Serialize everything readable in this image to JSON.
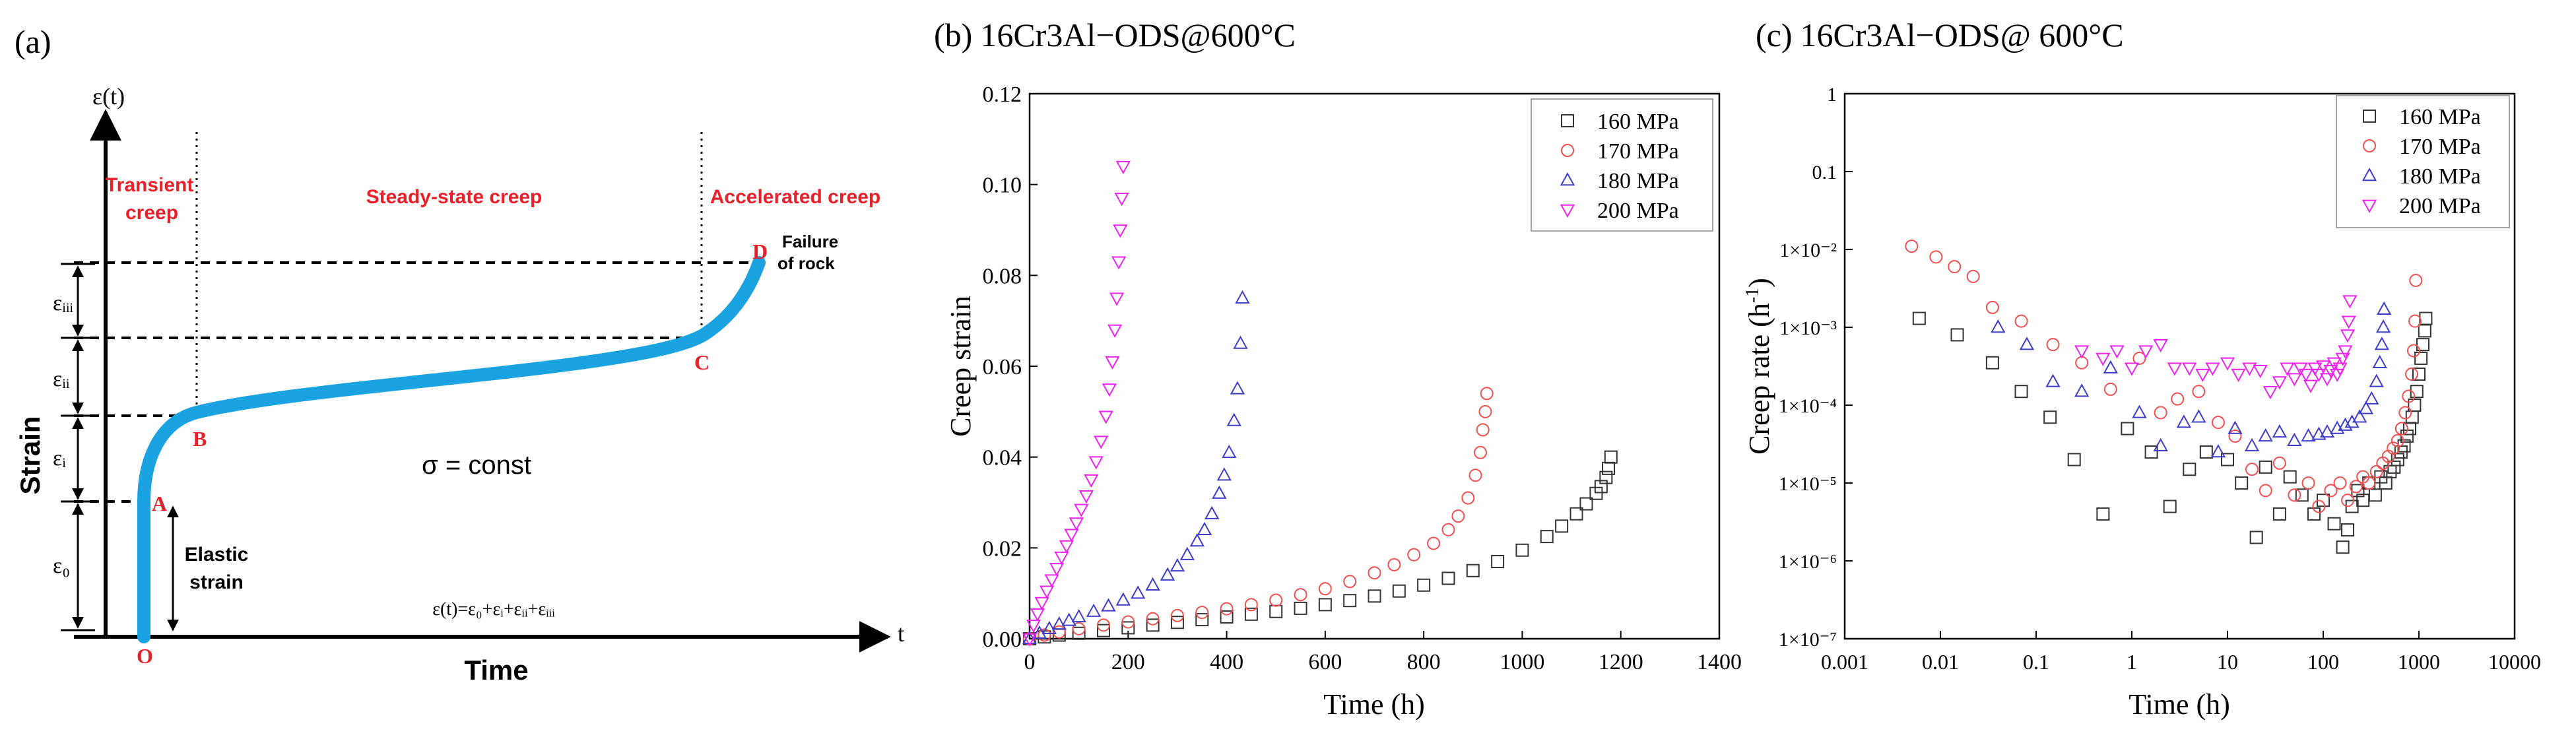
{
  "colors": {
    "curve": "#1aa3e0",
    "label_red": "#e8202a",
    "axis": "#000000",
    "s160": "#333333",
    "s170": "#f05050",
    "s180": "#3c3cc8",
    "s200": "#ee22ee"
  },
  "chart_data": [
    {
      "type": "diagram",
      "panel": "(a)",
      "y_axis_symbol": "ε(t)",
      "x_axis_symbol": "t",
      "ylabel": "Strain",
      "xlabel": "Time",
      "stage_labels": {
        "transient": "Transient",
        "transient2": "creep",
        "steady": "Steady-state creep",
        "accelerated": "Accelerated creep"
      },
      "points": [
        "O",
        "A",
        "B",
        "C",
        "D"
      ],
      "failure": [
        "Failure",
        "of rock"
      ],
      "elastic": [
        "Elastic",
        "strain"
      ],
      "stress_label": "σ = const",
      "equation": "ε(t)=ε₀+εᵢ+εᵢᵢ+εᵢᵢᵢ",
      "eps_labels": [
        "ε₀",
        "εᵢ",
        "εᵢᵢ",
        "εᵢᵢᵢ"
      ]
    },
    {
      "type": "scatter",
      "panel": "(b)",
      "title": "16Cr3Al−ODS@600°C",
      "xlabel": "Time (h)",
      "ylabel": "Creep strain",
      "xlim": [
        0,
        1400
      ],
      "ylim": [
        0,
        0.12
      ],
      "xticks": [
        "0",
        "200",
        "400",
        "600",
        "800",
        "1000",
        "1200",
        "1400"
      ],
      "yticks": [
        "0.00",
        "0.02",
        "0.04",
        "0.06",
        "0.08",
        "0.10",
        "0.12"
      ],
      "legend": [
        "160 MPa",
        "170 MPa",
        "180 MPa",
        "200 MPa"
      ],
      "series": [
        {
          "name": "160 MPa",
          "marker": "square",
          "color": "#333333",
          "x": [
            0,
            30,
            60,
            100,
            150,
            200,
            250,
            300,
            350,
            400,
            450,
            500,
            550,
            600,
            650,
            700,
            750,
            800,
            850,
            900,
            950,
            1000,
            1050,
            1080,
            1110,
            1130,
            1150,
            1160,
            1170,
            1175,
            1180
          ],
          "y": [
            0,
            0.0004,
            0.0008,
            0.0012,
            0.0018,
            0.0024,
            0.003,
            0.0036,
            0.0042,
            0.0048,
            0.0054,
            0.006,
            0.0067,
            0.0075,
            0.0084,
            0.0094,
            0.0105,
            0.0118,
            0.0133,
            0.015,
            0.017,
            0.0195,
            0.0225,
            0.0248,
            0.0275,
            0.0297,
            0.032,
            0.0335,
            0.0355,
            0.0375,
            0.04
          ]
        },
        {
          "name": "170 MPa",
          "marker": "circle",
          "color": "#f05050",
          "x": [
            0,
            30,
            60,
            100,
            150,
            200,
            250,
            300,
            350,
            400,
            450,
            500,
            550,
            600,
            650,
            700,
            740,
            780,
            820,
            850,
            870,
            890,
            905,
            915,
            920,
            925,
            928
          ],
          "y": [
            0,
            0.0008,
            0.0015,
            0.0022,
            0.003,
            0.0037,
            0.0044,
            0.0051,
            0.0058,
            0.0066,
            0.0075,
            0.0085,
            0.0097,
            0.011,
            0.0126,
            0.0145,
            0.0163,
            0.0185,
            0.021,
            0.024,
            0.027,
            0.031,
            0.036,
            0.041,
            0.046,
            0.05,
            0.054
          ]
        },
        {
          "name": "180 MPa",
          "marker": "triangle",
          "color": "#3c3cc8",
          "x": [
            0,
            20,
            40,
            60,
            80,
            100,
            130,
            160,
            190,
            220,
            250,
            280,
            300,
            320,
            340,
            355,
            370,
            385,
            395,
            405,
            415,
            422,
            428,
            432
          ],
          "y": [
            0,
            0.0012,
            0.0022,
            0.0032,
            0.004,
            0.0048,
            0.006,
            0.0072,
            0.0085,
            0.01,
            0.0118,
            0.014,
            0.016,
            0.0185,
            0.0215,
            0.024,
            0.0275,
            0.032,
            0.036,
            0.041,
            0.048,
            0.055,
            0.065,
            0.075
          ]
        },
        {
          "name": "200 MPa",
          "marker": "invtriangle",
          "color": "#ee22ee",
          "x": [
            0,
            8,
            16,
            25,
            35,
            45,
            55,
            65,
            75,
            85,
            95,
            105,
            115,
            125,
            135,
            145,
            155,
            162,
            168,
            173,
            177,
            181,
            184,
            187,
            190
          ],
          "y": [
            0,
            0.003,
            0.0055,
            0.008,
            0.0105,
            0.013,
            0.0155,
            0.018,
            0.0205,
            0.023,
            0.0255,
            0.0285,
            0.0315,
            0.035,
            0.039,
            0.0435,
            0.049,
            0.055,
            0.061,
            0.068,
            0.075,
            0.083,
            0.09,
            0.097,
            0.104
          ]
        }
      ]
    },
    {
      "type": "scatter",
      "panel": "(c)",
      "title": "16Cr3Al−ODS@ 600°C",
      "xlabel": "Time (h)",
      "ylabel": "Creep rate (h",
      "ylabel_sup": "-1",
      "ylabel_end": ")",
      "xscale": "log",
      "yscale": "log",
      "xlim": [
        0.001,
        10000
      ],
      "ylim": [
        1e-07,
        1
      ],
      "xticks": [
        "0.001",
        "0.01",
        "0.1",
        "1",
        "10",
        "100",
        "1000",
        "10000"
      ],
      "yticks": [
        "1",
        "0.1",
        "1×10⁻²",
        "1×10⁻³",
        "1×10⁻⁴",
        "1×10⁻⁵",
        "1×10⁻⁶",
        "1×10⁻⁷"
      ],
      "legend": [
        "160 MPa",
        "170 MPa",
        "180 MPa",
        "200 MPa"
      ],
      "series": [
        {
          "name": "160 MPa",
          "marker": "square",
          "color": "#333333",
          "x": [
            0.006,
            0.015,
            0.035,
            0.07,
            0.14,
            0.25,
            0.5,
            0.9,
            1.6,
            2.5,
            4,
            6,
            10,
            14,
            20,
            25,
            35,
            45,
            60,
            80,
            100,
            130,
            160,
            180,
            200,
            230,
            260,
            300,
            350,
            400,
            450,
            500,
            550,
            600,
            650,
            700,
            750,
            800,
            850,
            900,
            950,
            1000,
            1050,
            1100,
            1150,
            1180
          ],
          "y": [
            0.0013,
            0.0008,
            0.00035,
            0.00015,
            7e-05,
            2e-05,
            4e-06,
            5e-05,
            2.5e-05,
            5e-06,
            1.5e-05,
            2.5e-05,
            2e-05,
            1e-05,
            2e-06,
            1.6e-05,
            4e-06,
            1.2e-05,
            7e-06,
            4e-06,
            6e-06,
            3e-06,
            1.5e-06,
            2.5e-06,
            5e-06,
            8e-06,
            6e-06,
            1e-05,
            7e-06,
            1.2e-05,
            1e-05,
            1.4e-05,
            1.6e-05,
            2e-05,
            2.5e-05,
            3e-05,
            4e-05,
            5e-05,
            7e-05,
            0.0001,
            0.00015,
            0.00025,
            0.0004,
            0.0006,
            0.0009,
            0.0013
          ]
        },
        {
          "name": "170 MPa",
          "marker": "circle",
          "color": "#f05050",
          "x": [
            0.005,
            0.009,
            0.014,
            0.022,
            0.035,
            0.07,
            0.15,
            0.3,
            0.6,
            1.2,
            2,
            3,
            5,
            8,
            12,
            18,
            25,
            35,
            50,
            70,
            90,
            120,
            150,
            180,
            220,
            260,
            300,
            360,
            420,
            480,
            540,
            600,
            660,
            720,
            780,
            840,
            880,
            910,
            928
          ],
          "y": [
            0.011,
            0.008,
            0.006,
            0.0045,
            0.0018,
            0.0012,
            0.0006,
            0.00035,
            0.00016,
            0.0004,
            8e-05,
            0.00012,
            0.00015,
            6e-05,
            4e-05,
            1.5e-05,
            8e-06,
            1.8e-05,
            7e-06,
            1e-05,
            5e-06,
            8e-06,
            1e-05,
            6e-06,
            9e-06,
            1.2e-05,
            1e-05,
            1.4e-05,
            1.8e-05,
            2.2e-05,
            2.8e-05,
            3.5e-05,
            5e-05,
            8e-05,
            0.00013,
            0.00025,
            0.0005,
            0.0012,
            0.004
          ]
        },
        {
          "name": "180 MPa",
          "marker": "triangle",
          "color": "#3c3cc8",
          "x": [
            0.04,
            0.08,
            0.15,
            0.3,
            0.6,
            1.2,
            2,
            3.5,
            5,
            8,
            12,
            18,
            25,
            35,
            50,
            70,
            90,
            110,
            140,
            170,
            200,
            240,
            280,
            320,
            360,
            390,
            410,
            425,
            432
          ],
          "y": [
            0.001,
            0.0006,
            0.0002,
            0.00015,
            0.0003,
            8e-05,
            3e-05,
            6e-05,
            7e-05,
            2.5e-05,
            5e-05,
            3e-05,
            4e-05,
            4.5e-05,
            3.5e-05,
            4e-05,
            4.2e-05,
            4.5e-05,
            5e-05,
            5.5e-05,
            6e-05,
            7e-05,
            9e-05,
            0.00012,
            0.0002,
            0.00035,
            0.0006,
            0.001,
            0.0017
          ]
        },
        {
          "name": "200 MPa",
          "marker": "invtriangle",
          "color": "#ee22ee",
          "x": [
            0.3,
            0.5,
            0.7,
            1,
            1.4,
            2,
            2.8,
            4,
            5.5,
            7,
            10,
            13,
            17,
            22,
            28,
            35,
            42,
            50,
            58,
            66,
            74,
            82,
            90,
            100,
            110,
            120,
            130,
            140,
            150,
            160,
            170,
            180,
            185,
            190
          ],
          "y": [
            0.0005,
            0.0004,
            0.0005,
            0.0003,
            0.0005,
            0.0006,
            0.0003,
            0.0003,
            0.00025,
            0.0003,
            0.00035,
            0.00025,
            0.0003,
            0.00028,
            0.00015,
            0.0002,
            0.0003,
            0.00022,
            0.0003,
            0.00025,
            0.00018,
            0.0003,
            0.00025,
            0.00032,
            0.00022,
            0.00028,
            0.00035,
            0.00025,
            0.0003,
            0.0004,
            0.0005,
            0.0008,
            0.0012,
            0.0022
          ]
        }
      ]
    }
  ]
}
